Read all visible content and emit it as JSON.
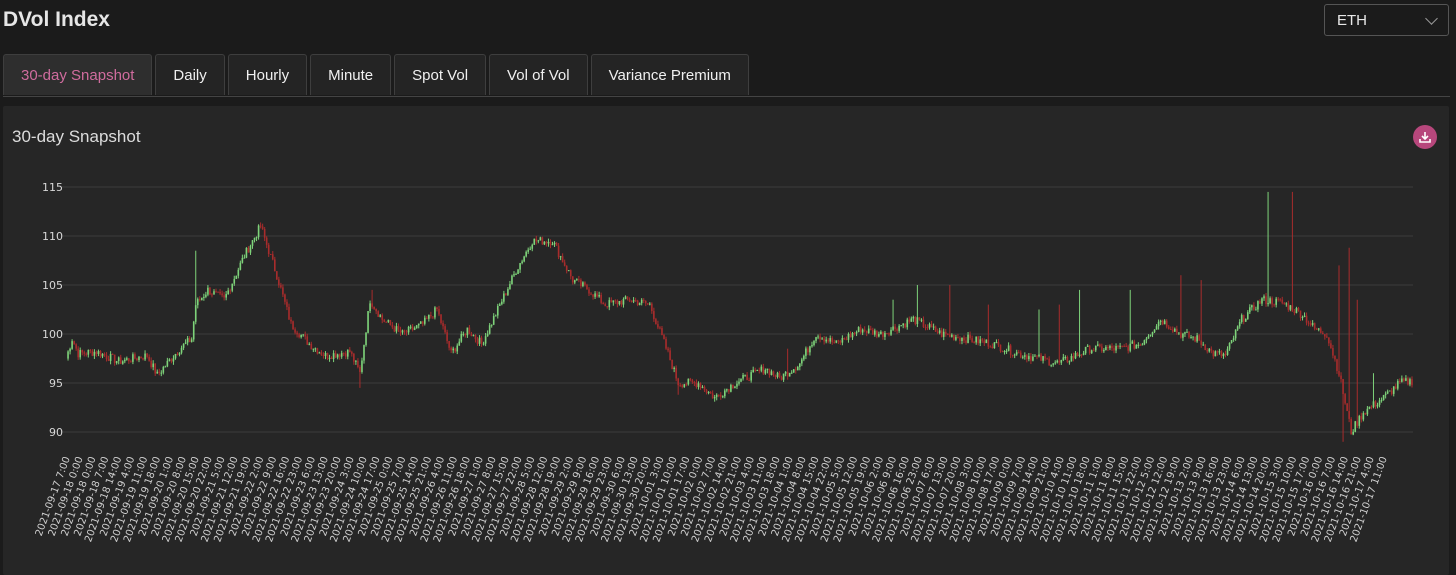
{
  "app": {
    "title": "DVol Index"
  },
  "asset_select": {
    "value": "ETH"
  },
  "tabs": [
    {
      "label": "30-day Snapshot",
      "active": true
    },
    {
      "label": "Daily"
    },
    {
      "label": "Hourly"
    },
    {
      "label": "Minute"
    },
    {
      "label": "Spot Vol"
    },
    {
      "label": "Vol of Vol"
    },
    {
      "label": "Variance Premium"
    }
  ],
  "panel": {
    "title": "30-day Snapshot",
    "download_icon": "download-icon"
  },
  "colors": {
    "up": "#7ed37a",
    "down": "#a82c2c",
    "accent": "#d06c9e",
    "grid": "#3c3c3c"
  },
  "chart_data": {
    "type": "candlestick",
    "title": "30-day Snapshot",
    "ylim": [
      88,
      116
    ],
    "yticks": [
      90,
      95,
      100,
      105,
      110,
      115
    ],
    "grid": true,
    "xlabels": [
      "2021-09-17 7:00",
      "2021-09-18 0:00",
      "2021-09-18 0:00",
      "2021-09-18 7:00",
      "2021-09-18 14:00",
      "2021-09-19 4:00",
      "2021-09-19 11:00",
      "2021-09-19 18:00",
      "2021-09-20 1:00",
      "2021-09-20 8:00",
      "2021-09-20 15:00",
      "2021-09-20 22:00",
      "2021-09-21 5:00",
      "2021-09-21 12:00",
      "2021-09-21 19:00",
      "2021-09-22 2:00",
      "2021-09-22 9:00",
      "2021-09-22 16:00",
      "2021-09-22 23:00",
      "2021-09-23 6:00",
      "2021-09-23 13:00",
      "2021-09-23 20:00",
      "2021-09-24 3:00",
      "2021-09-24 10:00",
      "2021-09-24 17:00",
      "2021-09-25 0:00",
      "2021-09-25 7:00",
      "2021-09-25 14:00",
      "2021-09-25 21:00",
      "2021-09-26 4:00",
      "2021-09-26 11:00",
      "2021-09-26 18:00",
      "2021-09-27 1:00",
      "2021-09-27 8:00",
      "2021-09-27 15:00",
      "2021-09-27 22:00",
      "2021-09-28 5:00",
      "2021-09-28 12:00",
      "2021-09-28 19:00",
      "2021-09-29 2:00",
      "2021-09-29 9:00",
      "2021-09-29 16:00",
      "2021-09-29 23:00",
      "2021-09-30 6:00",
      "2021-09-30 13:00",
      "2021-09-30 20:00",
      "2021-10-01 3:00",
      "2021-10-01 10:00",
      "2021-10-01 17:00",
      "2021-10-02 0:00",
      "2021-10-02 7:00",
      "2021-10-02 14:00",
      "2021-10-02 21:00",
      "2021-10-03 4:00",
      "2021-10-03 11:00",
      "2021-10-03 18:00",
      "2021-10-04 1:00",
      "2021-10-04 8:00",
      "2021-10-04 15:00",
      "2021-10-04 22:00",
      "2021-10-05 5:00",
      "2021-10-05 12:00",
      "2021-10-05 19:00",
      "2021-10-06 2:00",
      "2021-10-06 9:00",
      "2021-10-06 16:00",
      "2021-10-06 23:00",
      "2021-10-07 6:00",
      "2021-10-07 13:00",
      "2021-10-07 20:00",
      "2021-10-08 3:00",
      "2021-10-08 10:00",
      "2021-10-08 17:00",
      "2021-10-09 0:00",
      "2021-10-09 7:00",
      "2021-10-09 14:00",
      "2021-10-09 21:00",
      "2021-10-10 4:00",
      "2021-10-10 11:00",
      "2021-10-10 18:00",
      "2021-10-11 1:00",
      "2021-10-11 8:00",
      "2021-10-11 15:00",
      "2021-10-11 22:00",
      "2021-10-12 5:00",
      "2021-10-12 12:00",
      "2021-10-12 19:00",
      "2021-10-13 2:00",
      "2021-10-13 9:00",
      "2021-10-13 16:00",
      "2021-10-13 23:00",
      "2021-10-14 6:00",
      "2021-10-14 13:00",
      "2021-10-14 20:00",
      "2021-10-15 3:00",
      "2021-10-15 10:00",
      "2021-10-15 17:00",
      "2021-10-16 0:00",
      "2021-10-16 7:00",
      "2021-10-16 14:00",
      "2021-10-16 21:00",
      "2021-10-17 4:00",
      "2021-10-17 11:00"
    ],
    "anchors": [
      [
        0,
        97.5
      ],
      [
        3,
        99.5
      ],
      [
        6,
        98.0
      ],
      [
        15,
        98.2
      ],
      [
        26,
        97.2
      ],
      [
        40,
        97.8
      ],
      [
        45,
        95.8
      ],
      [
        56,
        98.5
      ],
      [
        62,
        99.5
      ],
      [
        64,
        103.0
      ],
      [
        70,
        104.5
      ],
      [
        78,
        103.5
      ],
      [
        88,
        108.0
      ],
      [
        96,
        111.0
      ],
      [
        104,
        106.0
      ],
      [
        111,
        101.0
      ],
      [
        120,
        99.0
      ],
      [
        128,
        97.8
      ],
      [
        140,
        98.2
      ],
      [
        145,
        96.0
      ],
      [
        150,
        103.5
      ],
      [
        156,
        101.5
      ],
      [
        166,
        100.0
      ],
      [
        176,
        101.0
      ],
      [
        183,
        102.5
      ],
      [
        190,
        98.0
      ],
      [
        198,
        100.5
      ],
      [
        205,
        99.0
      ],
      [
        213,
        102.5
      ],
      [
        222,
        106.5
      ],
      [
        230,
        109.5
      ],
      [
        240,
        109.5
      ],
      [
        250,
        105.5
      ],
      [
        258,
        104.5
      ],
      [
        266,
        103.0
      ],
      [
        278,
        103.5
      ],
      [
        288,
        103.0
      ],
      [
        297,
        98.0
      ],
      [
        302,
        95.0
      ],
      [
        312,
        95.0
      ],
      [
        320,
        93.5
      ],
      [
        330,
        95.0
      ],
      [
        345,
        96.5
      ],
      [
        352,
        95.5
      ],
      [
        362,
        97.0
      ],
      [
        370,
        100.0
      ],
      [
        380,
        99.0
      ],
      [
        392,
        100.5
      ],
      [
        402,
        100.0
      ],
      [
        418,
        101.5
      ],
      [
        432,
        100.0
      ],
      [
        445,
        99.5
      ],
      [
        457,
        99.0
      ],
      [
        470,
        98.0
      ],
      [
        480,
        97.5
      ],
      [
        490,
        97.0
      ],
      [
        505,
        98.5
      ],
      [
        520,
        98.5
      ],
      [
        530,
        99.0
      ],
      [
        540,
        101.5
      ],
      [
        550,
        100.0
      ],
      [
        558,
        99.5
      ],
      [
        566,
        98.0
      ],
      [
        572,
        97.8
      ],
      [
        580,
        101.5
      ],
      [
        590,
        103.5
      ],
      [
        600,
        103.2
      ],
      [
        610,
        102.0
      ],
      [
        616,
        100.5
      ],
      [
        622,
        100.0
      ],
      [
        628,
        96.0
      ],
      [
        634,
        90.0
      ],
      [
        640,
        92.0
      ],
      [
        650,
        93.5
      ],
      [
        658,
        95.0
      ],
      [
        664,
        95.2
      ]
    ],
    "spikes": [
      [
        64,
        108.5
      ],
      [
        151,
        104.5
      ],
      [
        356,
        98.5
      ],
      [
        408,
        103.5
      ],
      [
        420,
        105.0
      ],
      [
        436,
        105.0
      ],
      [
        455,
        103.0
      ],
      [
        480,
        102.5
      ],
      [
        490,
        103.0
      ],
      [
        500,
        104.5
      ],
      [
        525,
        104.5
      ],
      [
        550,
        106.0
      ],
      [
        560,
        105.5
      ],
      [
        593,
        114.5
      ],
      [
        605,
        114.5
      ],
      [
        628,
        107.0
      ],
      [
        633,
        108.8
      ],
      [
        637,
        103.5
      ],
      [
        645,
        96.0
      ]
    ],
    "dips": [
      [
        145,
        94.5
      ],
      [
        302,
        93.8
      ],
      [
        630,
        89.0
      ]
    ]
  }
}
